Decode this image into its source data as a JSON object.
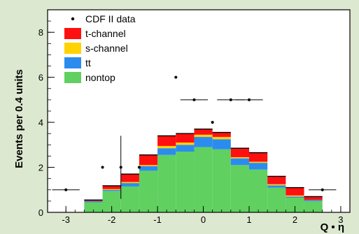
{
  "chart_data": {
    "type": "bar",
    "xlabel": "Q • η",
    "ylabel": "Events per 0.4 units",
    "xlim": [
      -3.4,
      3.2
    ],
    "ylim": [
      0,
      9
    ],
    "x_ticks": [
      "-3",
      "-2",
      "-1",
      "0",
      "1",
      "2",
      "3"
    ],
    "y_ticks": [
      "0",
      "2",
      "4",
      "6",
      "8"
    ],
    "grid": false,
    "legend_position": "top-left",
    "bin_edges": [
      -3.0,
      -2.6,
      -2.2,
      -1.8,
      -1.4,
      -1.0,
      -0.6,
      -0.2,
      0.2,
      0.6,
      1.0,
      1.4,
      1.8,
      2.2,
      2.6,
      3.0
    ],
    "stack_order_bottom_to_top": [
      "nontop",
      "tt",
      "s-channel",
      "t-channel"
    ],
    "series": [
      {
        "name": "nontop",
        "color": "#60d060",
        "values": [
          0.0,
          0.45,
          0.95,
          1.15,
          1.85,
          2.55,
          2.7,
          2.9,
          2.8,
          2.1,
          1.9,
          1.1,
          0.65,
          0.5,
          0.0
        ]
      },
      {
        "name": "tt",
        "color": "#2b8cf0",
        "values": [
          0.0,
          0.05,
          0.05,
          0.15,
          0.2,
          0.3,
          0.3,
          0.45,
          0.45,
          0.3,
          0.3,
          0.1,
          0.05,
          0.05,
          0.0
        ]
      },
      {
        "name": "s-channel",
        "color": "#ffd200",
        "values": [
          0.0,
          0.0,
          0.03,
          0.05,
          0.05,
          0.1,
          0.1,
          0.1,
          0.1,
          0.05,
          0.05,
          0.05,
          0.05,
          0.0,
          0.0
        ]
      },
      {
        "name": "t-channel",
        "color": "#ff1010",
        "values": [
          0.0,
          0.05,
          0.15,
          0.35,
          0.45,
          0.45,
          0.4,
          0.25,
          0.2,
          0.4,
          0.4,
          0.35,
          0.35,
          0.15,
          0.0
        ]
      }
    ],
    "data_series": {
      "name": "CDF II data",
      "points": [
        {
          "x": -3.0,
          "y": 1.0,
          "xerr": 0.3
        },
        {
          "x": -2.2,
          "y": 2.0
        },
        {
          "x": -1.8,
          "y": 2.0,
          "yerr": 1.4
        },
        {
          "x": -1.4,
          "y": 2.0
        },
        {
          "x": -0.6,
          "y": 6.0
        },
        {
          "x": -0.2,
          "y": 5.0,
          "xerr": 0.3
        },
        {
          "x": 0.2,
          "y": 4.0
        },
        {
          "x": 0.6,
          "y": 5.0,
          "xerr": 0.3
        },
        {
          "x": 1.0,
          "y": 5.0,
          "xerr": 0.3
        },
        {
          "x": 2.6,
          "y": 1.0,
          "xerr": 0.3
        }
      ]
    },
    "legend": [
      {
        "label": "CDF II data",
        "kind": "point",
        "color": "#000000"
      },
      {
        "label": "t-channel",
        "kind": "box",
        "color": "#ff1010"
      },
      {
        "label": "s-channel",
        "kind": "box",
        "color": "#ffd200"
      },
      {
        "label": "tt",
        "kind": "box",
        "color": "#2b8cf0"
      },
      {
        "label": "nontop",
        "kind": "box",
        "color": "#60d060"
      }
    ]
  }
}
